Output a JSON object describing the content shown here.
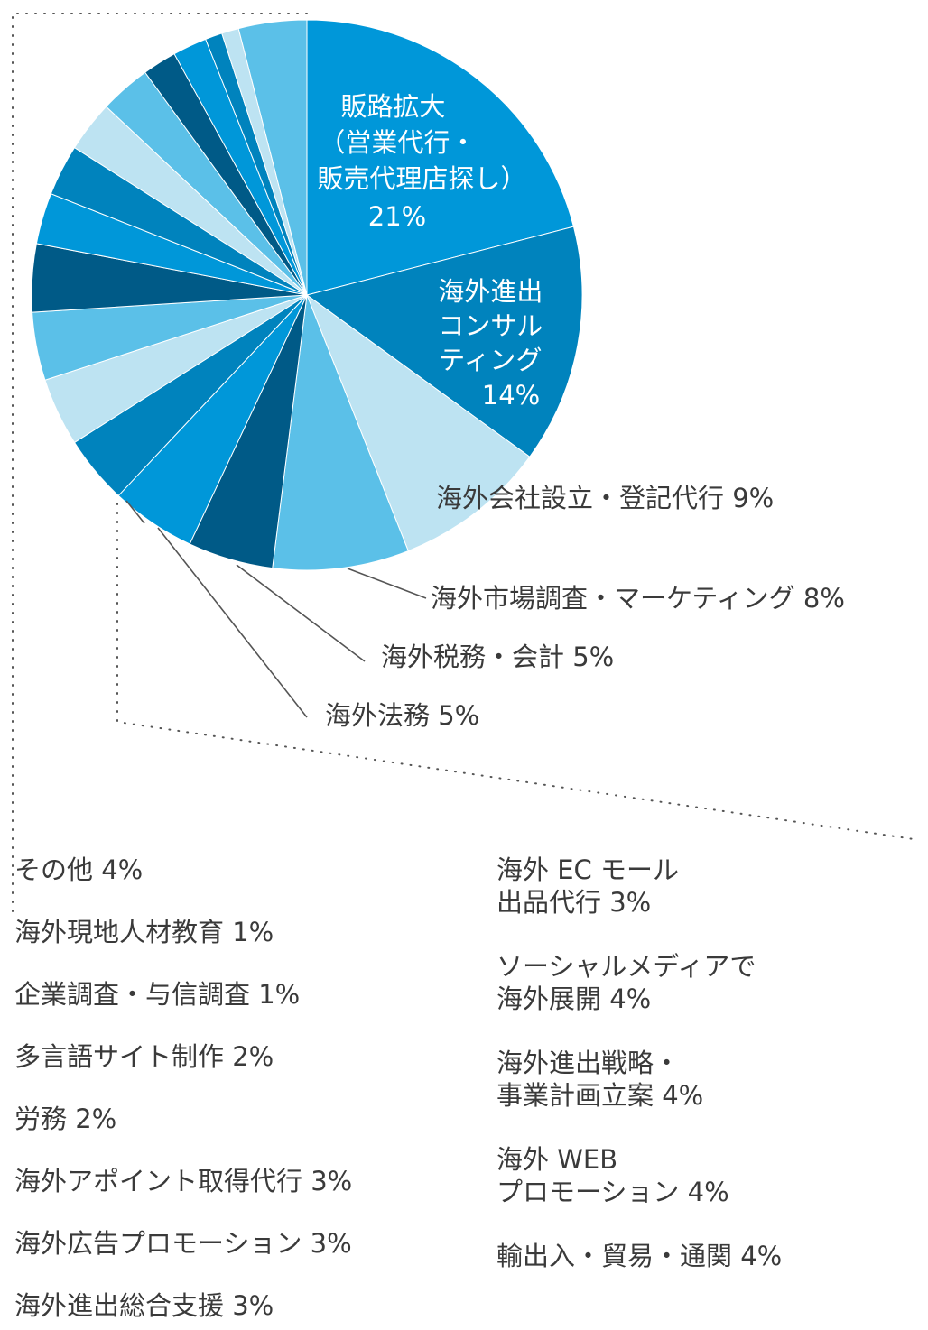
{
  "chart_data": {
    "type": "pie",
    "slices": [
      {
        "label": "販路拡大\n（営業代行・\n販売代理店探し）",
        "value": 21,
        "value_label": "21%",
        "color": "#0097d9"
      },
      {
        "label": "海外進出\nコンサル\nティング",
        "value": 14,
        "value_label": "14%",
        "color": "#0083bd"
      },
      {
        "label": "海外会社設立・登記代行",
        "value": 9,
        "value_label": "9%",
        "color": "#bde3f2"
      },
      {
        "label": "海外市場調査・マーケティング",
        "value": 8,
        "value_label": "8%",
        "color": "#5bc0e8"
      },
      {
        "label": "海外税務・会計",
        "value": 5,
        "value_label": "5%",
        "color": "#005a87"
      },
      {
        "label": "海外法務",
        "value": 5,
        "value_label": "5%",
        "color": "#0097d9"
      },
      {
        "label": "輸出入・貿易・通関",
        "value": 4,
        "value_label": "4%",
        "color": "#0083bd"
      },
      {
        "label": "海外 WEB\nプロモーション",
        "value": 4,
        "value_label": "4%",
        "color": "#bde3f2"
      },
      {
        "label": "海外進出戦略・\n事業計画立案",
        "value": 4,
        "value_label": "4%",
        "color": "#5bc0e8"
      },
      {
        "label": "ソーシャルメディアで\n海外展開",
        "value": 4,
        "value_label": "4%",
        "color": "#005a87"
      },
      {
        "label": "海外 EC モール\n出品代行",
        "value": 3,
        "value_label": "3%",
        "color": "#0097d9"
      },
      {
        "label": "海外進出総合支援",
        "value": 3,
        "value_label": "3%",
        "color": "#0083bd"
      },
      {
        "label": "海外広告プロモーション",
        "value": 3,
        "value_label": "3%",
        "color": "#bde3f2"
      },
      {
        "label": "海外アポイント取得代行",
        "value": 3,
        "value_label": "3%",
        "color": "#5bc0e8"
      },
      {
        "label": "労務",
        "value": 2,
        "value_label": "2%",
        "color": "#005a87"
      },
      {
        "label": "多言語サイト制作",
        "value": 2,
        "value_label": "2%",
        "color": "#0097d9"
      },
      {
        "label": "企業調査・与信調査",
        "value": 1,
        "value_label": "1%",
        "color": "#0083bd"
      },
      {
        "label": "海外現地人材教育",
        "value": 1,
        "value_label": "1%",
        "color": "#bde3f2"
      },
      {
        "label": "その他",
        "value": 4,
        "value_label": "4%",
        "color": "#5bc0e8"
      }
    ]
  },
  "labels": {
    "inside_1": [
      "販路拡大",
      "（営業代行・",
      "販売代理店探し）",
      "21%"
    ],
    "inside_2": [
      "海外進出",
      "コンサル",
      "ティング",
      "14%"
    ],
    "callout_1": "海外会社設立・登記代行 9%",
    "callout_2": "海外市場調査・マーケティング  8%",
    "callout_3": "海外税務・会計  5%",
    "callout_4": "海外法務  5%"
  },
  "legend_left": [
    "その他  4%",
    "海外現地人材教育  1%",
    "企業調査・与信調査  1%",
    "多言語サイト制作  2%",
    "労務  2%",
    "海外アポイント取得代行  3%",
    "海外広告プロモーション  3%",
    "海外進出総合支援  3%"
  ],
  "legend_right": [
    "海外 EC モール\n出品代行  3%",
    "ソーシャルメディアで\n海外展開  4%",
    "海外進出戦略・\n事業計画立案  4%",
    "海外 WEB\nプロモーション  4%",
    "輸出入・貿易・通関  4%"
  ]
}
